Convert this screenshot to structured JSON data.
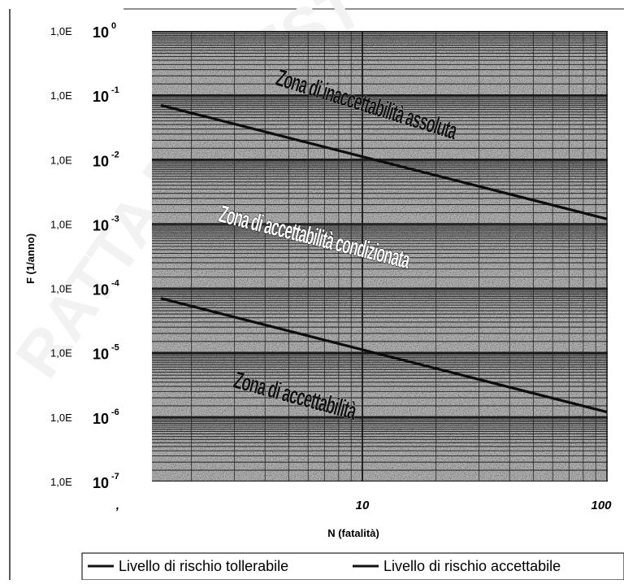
{
  "chart_data": {
    "type": "line",
    "xlabel": "N (fatalità)",
    "ylabel": "F (1/anno)",
    "x_scale": "log",
    "y_scale": "log",
    "xlim": [
      1.5,
      100
    ],
    "ylim": [
      1e-07,
      1
    ],
    "x_tick_labels": [
      {
        "value": 1,
        "label": ","
      },
      {
        "value": 10,
        "label": "10"
      },
      {
        "value": 100,
        "label": "100"
      }
    ],
    "y_tick_labels": [
      {
        "value": 1,
        "left": "1,0E",
        "base": "10",
        "exp": "0"
      },
      {
        "value": 0.1,
        "left": "1,0E",
        "base": "10",
        "exp": "-1"
      },
      {
        "value": 0.01,
        "left": "1,0E",
        "base": "10",
        "exp": "-2"
      },
      {
        "value": 0.001,
        "left": "1,0E",
        "base": "10",
        "exp": "-3"
      },
      {
        "value": 0.0001,
        "left": "1,0E",
        "base": "10",
        "exp": "-4"
      },
      {
        "value": 1e-05,
        "left": "1,0E",
        "base": "10",
        "exp": "-5"
      },
      {
        "value": 1e-06,
        "left": "1,0E",
        "base": "10",
        "exp": "-6"
      },
      {
        "value": 1e-07,
        "left": "1,0E",
        "base": "10",
        "exp": "-7"
      }
    ],
    "series": [
      {
        "name": "Livello di rischio tollerabile",
        "x": [
          1.5,
          100
        ],
        "y": [
          0.07,
          0.0012
        ]
      },
      {
        "name": "Livello di rischio accettabile",
        "x": [
          1.5,
          100
        ],
        "y": [
          7e-05,
          1.2e-06
        ]
      }
    ],
    "annotations": [
      {
        "text": "Zona di inaccettabilità assoluta"
      },
      {
        "text": "Zona di accettabilità condizionata"
      },
      {
        "text": "Zona di accettabilità"
      }
    ],
    "grid": true,
    "legend_position": "bottom",
    "colors": {
      "line": "#111111",
      "grid": "#222222",
      "background": "#b4b4b4"
    }
  }
}
